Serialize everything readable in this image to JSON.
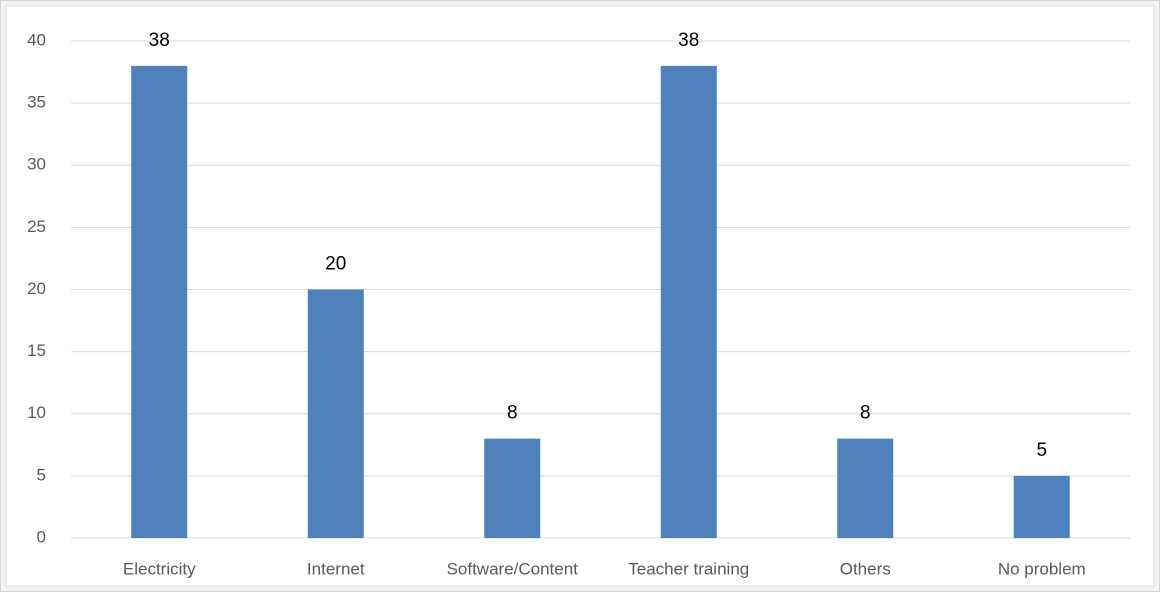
{
  "chart_data": {
    "type": "bar",
    "categories": [
      "Electricity",
      "Internet",
      "Software/Content",
      "Teacher training",
      "Others",
      "No problem"
    ],
    "values": [
      38,
      20,
      8,
      38,
      8,
      5
    ],
    "color": "#4f81bd",
    "ylim": [
      0,
      40
    ],
    "yticks": [
      0,
      5,
      10,
      15,
      20,
      25,
      30,
      35,
      40
    ],
    "grid": true,
    "data_labels": true
  }
}
